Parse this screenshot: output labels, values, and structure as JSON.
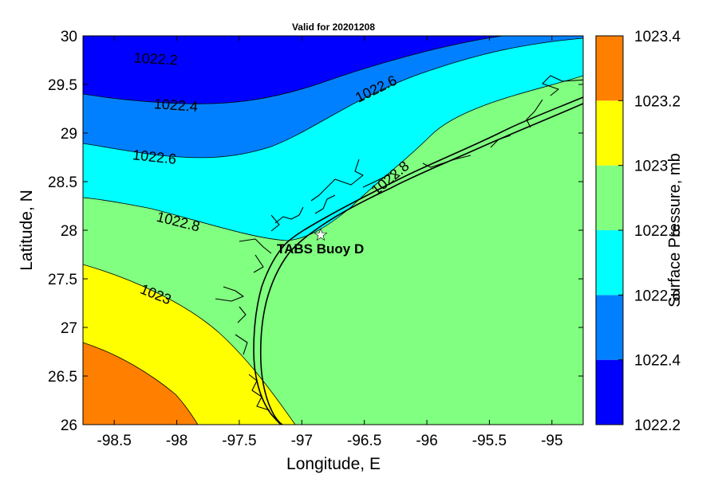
{
  "chart_data": {
    "type": "contour-map",
    "title": "Valid for 20201208",
    "xlabel": "Longitude, E",
    "ylabel": "Latitude, N",
    "xlim": [
      -98.75,
      -94.75
    ],
    "ylim": [
      26,
      30
    ],
    "x_ticks": [
      -98.5,
      -98,
      -97.5,
      -97,
      -96.5,
      -96,
      -95.5,
      -95
    ],
    "x_tick_labels": [
      "-98.5",
      "-98",
      "-97.5",
      "-97",
      "-96.5",
      "-96",
      "-95.5",
      "-95"
    ],
    "y_ticks": [
      26,
      26.5,
      27,
      27.5,
      28,
      28.5,
      29,
      29.5,
      30
    ],
    "y_tick_labels": [
      "26",
      "26.5",
      "27",
      "27.5",
      "28",
      "28.5",
      "29",
      "29.5",
      "30"
    ],
    "contour_levels": [
      1022.2,
      1022.4,
      1022.6,
      1022.8,
      1023,
      1023.2
    ],
    "contour_labels": [
      {
        "text": "1022.2",
        "lon": -98.2,
        "lat": 29.8,
        "angle": 3
      },
      {
        "text": "1022.4",
        "lon": -98.1,
        "lat": 29.3,
        "angle": 4
      },
      {
        "text": "1022.6",
        "lon": -98.1,
        "lat": 28.78,
        "angle": 6
      },
      {
        "text": "1022.6",
        "lon": -96.3,
        "lat": 29.35,
        "angle": -26
      },
      {
        "text": "1022.8",
        "lon": -98.0,
        "lat": 28.05,
        "angle": 14
      },
      {
        "text": "1022.8",
        "lon": -96.35,
        "lat": 28.6,
        "angle": -40
      },
      {
        "text": "1023",
        "lon": -98.3,
        "lat": 27.33,
        "angle": 22
      }
    ],
    "station": {
      "name": "TABS Buoy D",
      "lon": -96.84,
      "lat": 27.94
    },
    "colorbar": {
      "label": "Surface Pressure, mb",
      "range": [
        1022.2,
        1023.4
      ],
      "tick_labels": [
        "1022.2",
        "1022.4",
        "1022.6",
        "1022.8",
        "1023",
        "1023.2",
        "1023.4"
      ],
      "colors": [
        "#0000ff",
        "#0080ff",
        "#00ffff",
        "#80ff80",
        "#ffff00",
        "#ff8000"
      ]
    }
  }
}
